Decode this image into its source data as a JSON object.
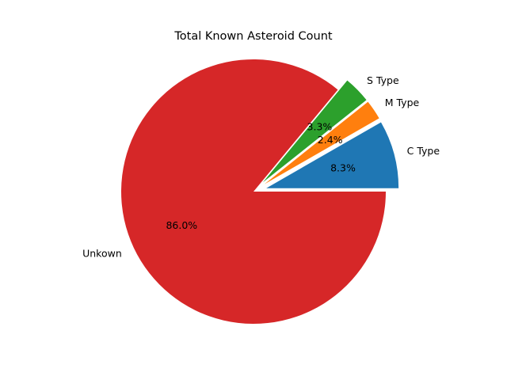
{
  "chart_data": {
    "type": "pie",
    "title": "Total Known Asteroid Count",
    "start_angle_deg": 0,
    "direction": "counterclockwise",
    "slices": [
      {
        "label": "C Type",
        "value": 8.3,
        "pct_label": "8.3%",
        "color": "#1f77b4",
        "exploded": true
      },
      {
        "label": "M Type",
        "value": 2.4,
        "pct_label": "2.4%",
        "color": "#ff7f0e",
        "exploded": true
      },
      {
        "label": "S Type",
        "value": 3.3,
        "pct_label": "3.3%",
        "color": "#2ca02c",
        "exploded": true
      },
      {
        "label": "Unkown",
        "value": 86.0,
        "pct_label": "86.0%",
        "color": "#d62728",
        "exploded": false
      }
    ]
  }
}
